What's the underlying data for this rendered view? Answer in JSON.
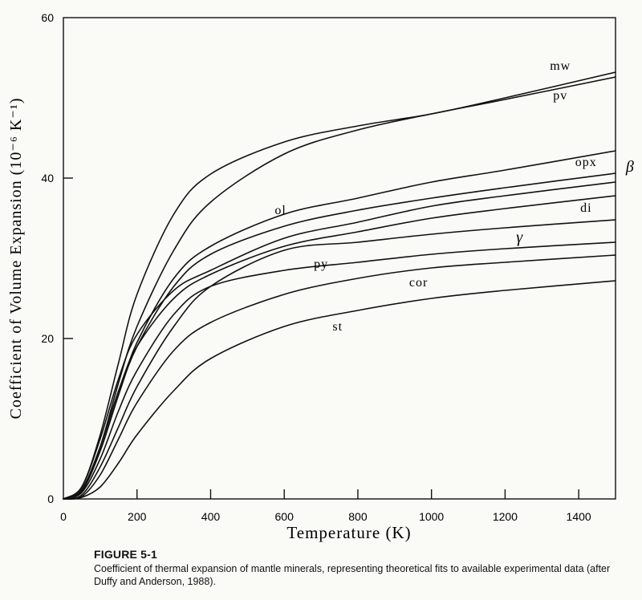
{
  "figure": {
    "number": "FIGURE 5-1",
    "caption": "Coefficient of thermal expansion of mantle minerals, representing theoretical fits to available experimental data (after Duffy and Anderson, 1988)."
  },
  "chart_data": {
    "type": "line",
    "title": "",
    "xlabel": "Temperature (K)",
    "ylabel": "Coefficient of Volume Expansion (10⁻⁶ K⁻¹)",
    "xlim": [
      0,
      1500
    ],
    "ylim": [
      0,
      60
    ],
    "xticks": [
      0,
      200,
      400,
      600,
      800,
      1000,
      1200,
      1400
    ],
    "yticks": [
      0,
      20,
      40,
      60
    ],
    "grid": false,
    "legend": "none (curves labeled directly)",
    "series": [
      {
        "name": "mw",
        "x": [
          0,
          50,
          100,
          150,
          200,
          300,
          400,
          600,
          800,
          1000,
          1200,
          1500
        ],
        "values": [
          0,
          1.5,
          8,
          17,
          25.5,
          35.5,
          40.5,
          44.5,
          46.5,
          48,
          50,
          53.2
        ]
      },
      {
        "name": "pv",
        "x": [
          0,
          50,
          100,
          150,
          200,
          300,
          400,
          600,
          800,
          1000,
          1200,
          1500
        ],
        "values": [
          0,
          1,
          6.5,
          14.5,
          21.5,
          31,
          37,
          43,
          46,
          48,
          49.8,
          52.6
        ]
      },
      {
        "name": "opx",
        "x": [
          0,
          50,
          100,
          150,
          200,
          300,
          400,
          600,
          800,
          1000,
          1200,
          1500
        ],
        "values": [
          0,
          1,
          6,
          13,
          19.5,
          27.5,
          31.5,
          35.5,
          37.5,
          39.5,
          41,
          43.4
        ]
      },
      {
        "name": "β",
        "x": [
          0,
          50,
          100,
          150,
          200,
          300,
          400,
          600,
          800,
          1000,
          1200,
          1500
        ],
        "values": [
          0,
          1,
          6,
          13,
          19,
          26.5,
          30.5,
          34,
          36,
          37.5,
          38.8,
          40.6
        ]
      },
      {
        "name": "ol",
        "x": [
          0,
          50,
          100,
          150,
          200,
          300,
          400,
          600,
          800,
          1000,
          1200,
          1500
        ],
        "values": [
          0,
          1.5,
          7.5,
          15,
          20.5,
          26,
          28.5,
          32.5,
          34.5,
          36.5,
          37.8,
          39.5
        ]
      },
      {
        "name": "di",
        "x": [
          0,
          50,
          100,
          150,
          200,
          300,
          400,
          600,
          800,
          1000,
          1200,
          1500
        ],
        "values": [
          0,
          1.2,
          6.5,
          13.5,
          19,
          25,
          28,
          31.5,
          33.3,
          35,
          36.2,
          37.8
        ]
      },
      {
        "name": "γ",
        "x": [
          0,
          50,
          100,
          150,
          200,
          300,
          400,
          600,
          800,
          1000,
          1200,
          1500
        ],
        "values": [
          0,
          0.5,
          4,
          9,
          14,
          21.5,
          26.5,
          31,
          32,
          33,
          33.8,
          34.8
        ]
      },
      {
        "name": "py",
        "x": [
          0,
          50,
          100,
          150,
          200,
          300,
          400,
          600,
          800,
          1000,
          1200,
          1500
        ],
        "values": [
          0,
          0.8,
          5,
          11,
          16,
          23,
          26.5,
          28.5,
          29.5,
          30.5,
          31.2,
          32
        ]
      },
      {
        "name": "cor",
        "x": [
          0,
          50,
          100,
          150,
          200,
          300,
          400,
          600,
          800,
          1000,
          1200,
          1500
        ],
        "values": [
          0,
          0.3,
          3,
          7.5,
          12,
          18.5,
          22,
          25.5,
          27.5,
          28.8,
          29.5,
          30.4
        ]
      },
      {
        "name": "st",
        "x": [
          0,
          50,
          100,
          150,
          200,
          300,
          400,
          600,
          800,
          1000,
          1200,
          1500
        ],
        "values": [
          0,
          0.2,
          1.5,
          4.5,
          8,
          13.5,
          17.5,
          21.5,
          23.5,
          25,
          26,
          27.2
        ]
      }
    ],
    "annotations": [
      {
        "text": "mw",
        "x": 1350,
        "y": 53.5
      },
      {
        "text": "pv",
        "x": 1350,
        "y": 49.8
      },
      {
        "text": "opx",
        "x": 1420,
        "y": 41.5
      },
      {
        "text": "β",
        "x": 1540,
        "y": 40.8
      },
      {
        "text": "ol",
        "x": 590,
        "y": 35.5
      },
      {
        "text": "di",
        "x": 1420,
        "y": 35.8
      },
      {
        "text": "γ",
        "x": 1240,
        "y": 32.0
      },
      {
        "text": "py",
        "x": 700,
        "y": 28.8
      },
      {
        "text": "cor",
        "x": 965,
        "y": 26.5
      },
      {
        "text": "st",
        "x": 745,
        "y": 21.0
      }
    ]
  }
}
